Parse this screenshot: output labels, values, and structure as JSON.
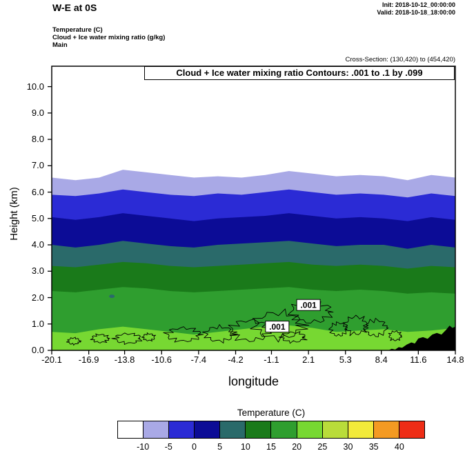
{
  "header": {
    "title": "W-E at 0S",
    "init": "Init: 2018-10-12_00:00:00",
    "valid": "Valid: 2018-10-18_18:00:00",
    "field_lines": [
      "Temperature   (C)",
      "Cloud + Ice water mixing ratio   (g/kg)",
      "Main"
    ],
    "cross_section": "Cross-Section: (130,420) to (454,420)"
  },
  "chart_data": {
    "type": "filled-contour-cross-section",
    "title": "Cloud + Ice water mixing ratio Contours: .001 to .1 by .099",
    "xlabel": "longitude",
    "ylabel": "Height (km)",
    "xlim": [
      -20.1,
      14.8
    ],
    "ylim": [
      0,
      10.8
    ],
    "x_ticks": [
      "-20.1",
      "-16.9",
      "-13.8",
      "-10.6",
      "-7.4",
      "-4.2",
      "-1.1",
      "2.1",
      "5.3",
      "8.4",
      "11.6",
      "14.8"
    ],
    "y_ticks": [
      "0.0",
      "1.0",
      "2.0",
      "3.0",
      "4.0",
      "5.0",
      "6.0",
      "7.0",
      "8.0",
      "9.0",
      "10.0"
    ],
    "longitudes": [
      -20.1,
      -18.05,
      -16.0,
      -13.95,
      -11.9,
      -9.85,
      -7.8,
      -5.74,
      -3.69,
      -1.64,
      0.41,
      2.46,
      4.51,
      6.57,
      8.62,
      10.67,
      12.72,
      14.8
    ],
    "background_band": {
      "temp_range_c": "below -10",
      "color": "#ffffff"
    },
    "bands": [
      {
        "temp_range_c": "-10 to -5",
        "color": "#a9a9e6",
        "top_km": [
          6.55,
          6.45,
          6.55,
          6.85,
          6.75,
          6.65,
          6.55,
          6.6,
          6.55,
          6.65,
          6.8,
          6.7,
          6.6,
          6.65,
          6.6,
          6.45,
          6.65,
          6.55
        ]
      },
      {
        "temp_range_c": "-5 to 0",
        "color": "#2b2bd5",
        "top_km": [
          5.9,
          5.85,
          5.95,
          6.1,
          6.0,
          5.9,
          5.85,
          5.95,
          5.9,
          6.0,
          6.1,
          6.0,
          5.9,
          5.95,
          5.9,
          5.8,
          5.95,
          5.85
        ]
      },
      {
        "temp_range_c": "0 to 5",
        "color": "#0c0c96",
        "top_km": [
          5.05,
          4.95,
          5.05,
          5.2,
          5.1,
          5.0,
          4.9,
          5.0,
          5.05,
          5.1,
          5.2,
          5.1,
          5.0,
          5.05,
          5.0,
          4.9,
          5.05,
          4.95
        ]
      },
      {
        "temp_range_c": "5 to 10",
        "color": "#2a6a6a",
        "top_km": [
          4.0,
          3.9,
          4.0,
          4.15,
          4.05,
          3.95,
          3.9,
          4.0,
          4.05,
          4.1,
          4.15,
          4.05,
          3.95,
          4.0,
          4.0,
          3.85,
          4.0,
          3.9
        ]
      },
      {
        "temp_range_c": "10 to 15",
        "color": "#1a7a1a",
        "top_km": [
          3.2,
          3.15,
          3.25,
          3.35,
          3.3,
          3.2,
          3.15,
          3.2,
          3.25,
          3.3,
          3.35,
          3.25,
          3.2,
          3.25,
          3.2,
          3.1,
          3.2,
          3.15
        ]
      },
      {
        "temp_range_c": "15 to 20",
        "color": "#2f9e2f",
        "top_km": [
          2.25,
          2.2,
          2.3,
          2.4,
          2.35,
          2.25,
          2.2,
          2.25,
          2.3,
          2.35,
          2.4,
          2.3,
          2.25,
          2.3,
          2.25,
          2.15,
          2.2,
          2.15
        ]
      },
      {
        "temp_range_c": "20 to 25",
        "color": "#77d832",
        "top_km": [
          0.7,
          0.65,
          0.8,
          0.9,
          0.8,
          0.7,
          0.6,
          0.7,
          0.8,
          0.9,
          0.95,
          0.85,
          0.7,
          0.75,
          0.8,
          0.7,
          0.75,
          0.85
        ]
      }
    ],
    "terrain": {
      "color": "#000000",
      "points": [
        [
          9.0,
          0.0
        ],
        [
          9.3,
          0.06
        ],
        [
          9.6,
          0.03
        ],
        [
          9.9,
          0.12
        ],
        [
          10.2,
          0.1
        ],
        [
          10.6,
          0.22
        ],
        [
          11.0,
          0.3
        ],
        [
          11.3,
          0.26
        ],
        [
          11.6,
          0.45
        ],
        [
          12.0,
          0.5
        ],
        [
          12.4,
          0.44
        ],
        [
          12.8,
          0.6
        ],
        [
          13.2,
          0.66
        ],
        [
          13.6,
          0.6
        ],
        [
          14.0,
          0.78
        ],
        [
          14.3,
          0.94
        ],
        [
          14.55,
          0.85
        ],
        [
          14.8,
          0.9
        ]
      ]
    },
    "contours": {
      "label": ".001",
      "line_color": "#000000",
      "labels": [
        {
          "lon": 2.1,
          "km": 1.72
        },
        {
          "lon": -0.6,
          "km": 0.9
        }
      ],
      "blobs": [
        [
          -18.2,
          0.35,
          0.5,
          0.12,
          1
        ],
        [
          -15.9,
          0.45,
          0.7,
          0.15,
          2
        ],
        [
          -13.5,
          0.45,
          1.1,
          0.18,
          3
        ],
        [
          -11.7,
          0.5,
          0.5,
          0.13,
          4
        ],
        [
          -8.7,
          0.6,
          1.4,
          0.25,
          5
        ],
        [
          -5.6,
          0.62,
          1.2,
          0.27,
          6
        ],
        [
          -3.0,
          0.75,
          1.6,
          0.38,
          7
        ],
        [
          -0.5,
          0.95,
          2.0,
          0.48,
          8
        ],
        [
          2.3,
          1.45,
          1.7,
          0.38,
          9
        ],
        [
          0.8,
          0.5,
          1.0,
          0.18,
          10
        ],
        [
          4.7,
          0.8,
          0.7,
          0.24,
          11
        ],
        [
          6.2,
          0.95,
          0.9,
          0.33,
          12
        ],
        [
          7.9,
          0.85,
          0.9,
          0.3,
          13
        ],
        [
          9.6,
          0.55,
          0.5,
          0.17,
          14
        ]
      ]
    },
    "speck": {
      "lon": -14.9,
      "km": 2.05,
      "color": "#2a6a6a"
    },
    "colorbar": {
      "title": "Temperature  (C)",
      "colors": [
        "#ffffff",
        "#a9a9e6",
        "#2b2bd5",
        "#0c0c96",
        "#2a6a6a",
        "#1a7a1a",
        "#2f9e2f",
        "#77d832",
        "#b9dc3a",
        "#f2ea3a",
        "#f49a22",
        "#ee2d16"
      ],
      "tick_labels": [
        "-10",
        "-5",
        "0",
        "5",
        "10",
        "15",
        "20",
        "25",
        "30",
        "35",
        "40"
      ]
    }
  }
}
